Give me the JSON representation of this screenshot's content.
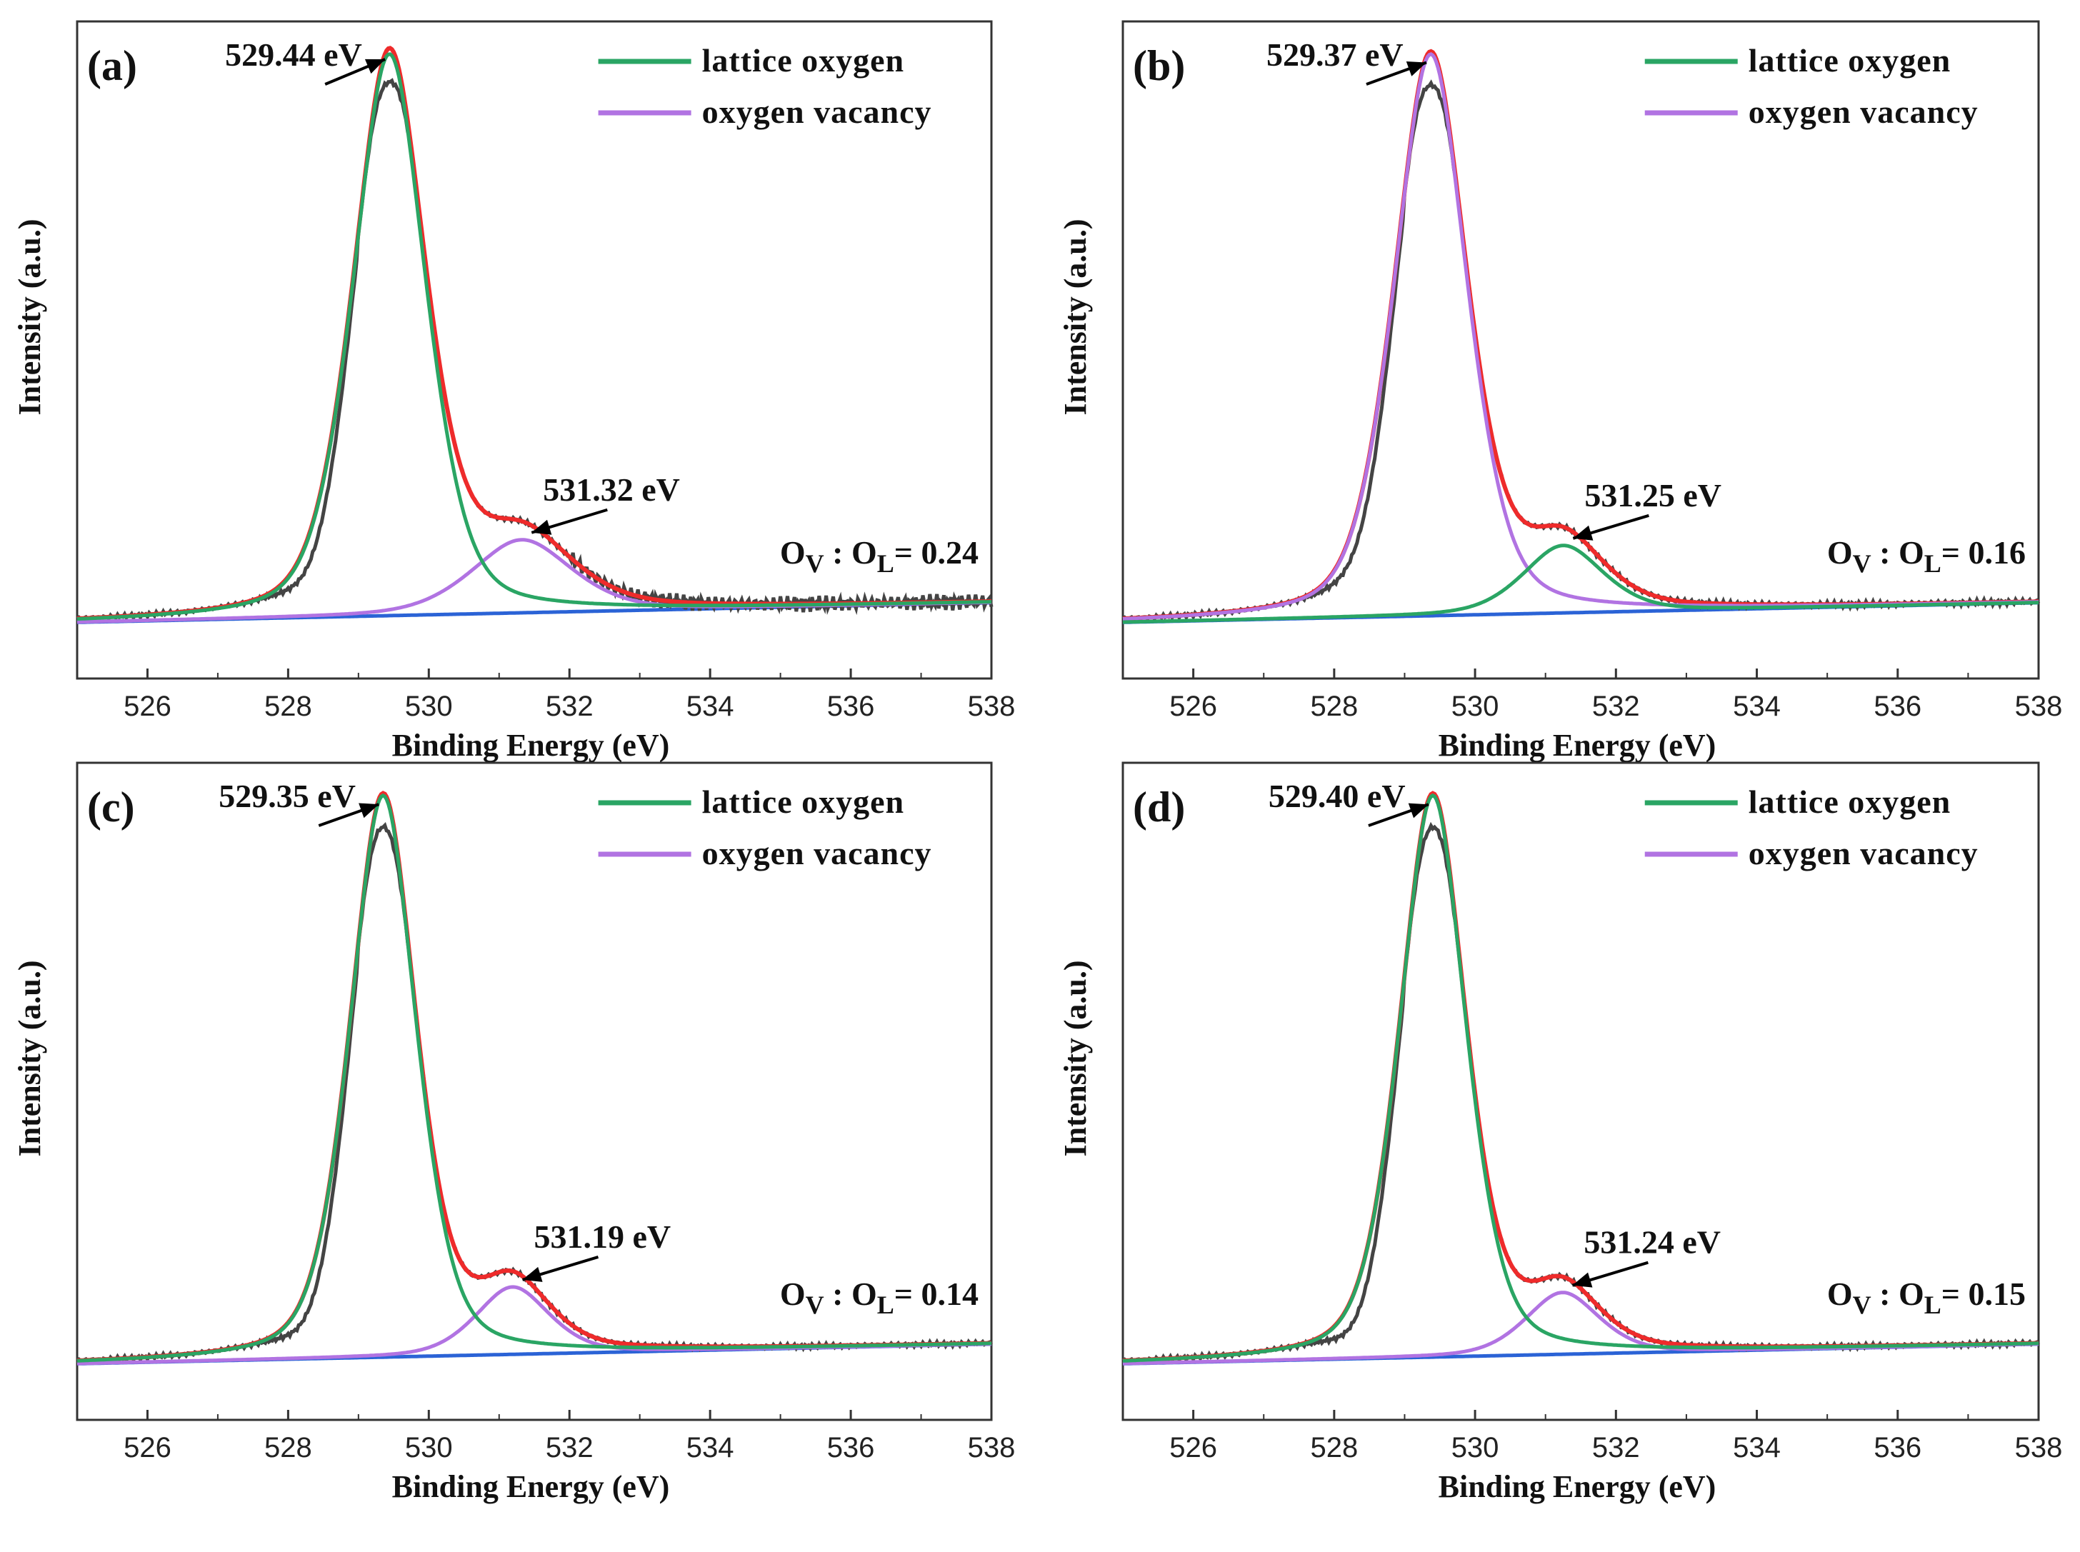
{
  "colors": {
    "raw": "#444444",
    "envelope": "#ee2b2b",
    "lattice": "#2aa564",
    "vacancy": "#b173e2",
    "background": "#2b63d6",
    "frame": "#333333"
  },
  "chart_data": [
    {
      "type": "line",
      "panel_label": "(a)",
      "xlabel": "Binding Energy (eV)",
      "ylabel": "Intensity (a.u.)",
      "xlim": [
        525,
        538
      ],
      "ylim": [
        -0.12,
        1.05
      ],
      "xticks": [
        "526",
        "528",
        "530",
        "532",
        "534",
        "536",
        "538"
      ],
      "legend": [
        "lattice oxygen",
        "oxygen vacancy"
      ],
      "ratio": {
        "prefix": "O",
        "sub1": "V",
        "mid": " : O",
        "sub2": "L",
        "suffix": "= 0.24"
      },
      "peaks": {
        "lattice": {
          "center": 529.44,
          "height": 1.0,
          "width": 0.55
        },
        "vacancy": {
          "center": 531.32,
          "height": 0.13,
          "width": 0.75
        }
      },
      "annotations": [
        {
          "text": "529.44 eV",
          "target": "lattice"
        },
        {
          "text": "531.32 eV",
          "target": "vacancy"
        }
      ],
      "green_component": "lattice",
      "purple_component": "vacancy",
      "noise_tail": 0.015
    },
    {
      "type": "line",
      "panel_label": "(b)",
      "xlabel": "Binding Energy (eV)",
      "ylabel": "Intensity (a.u.)",
      "xlim": [
        525,
        538
      ],
      "ylim": [
        -0.12,
        1.05
      ],
      "xticks": [
        "526",
        "528",
        "530",
        "532",
        "534",
        "536",
        "538"
      ],
      "legend": [
        "lattice oxygen",
        "oxygen vacancy"
      ],
      "ratio": {
        "prefix": "O",
        "sub1": "V",
        "mid": " : O",
        "sub2": "L",
        "suffix": "= 0.16"
      },
      "peaks": {
        "lattice": {
          "center": 529.37,
          "height": 1.0,
          "width": 0.55
        },
        "vacancy": {
          "center": 531.25,
          "height": 0.12,
          "width": 0.6
        }
      },
      "annotations": [
        {
          "text": "529.37 eV",
          "target": "lattice"
        },
        {
          "text": "531.25 eV",
          "target": "vacancy"
        }
      ],
      "green_component": "vacancy",
      "purple_component": "lattice",
      "noise_tail": 0.005
    },
    {
      "type": "line",
      "panel_label": "(c)",
      "xlabel": "Binding Energy (eV)",
      "ylabel": "Intensity (a.u.)",
      "xlim": [
        525,
        538
      ],
      "ylim": [
        -0.12,
        1.05
      ],
      "xticks": [
        "526",
        "528",
        "530",
        "532",
        "534",
        "536",
        "538"
      ],
      "legend": [
        "lattice oxygen",
        "oxygen vacancy"
      ],
      "ratio": {
        "prefix": "O",
        "sub1": "V",
        "mid": " : O",
        "sub2": "L",
        "suffix": "= 0.14"
      },
      "peaks": {
        "lattice": {
          "center": 529.35,
          "height": 1.0,
          "width": 0.5
        },
        "vacancy": {
          "center": 531.19,
          "height": 0.12,
          "width": 0.55
        }
      },
      "annotations": [
        {
          "text": "529.35 eV",
          "target": "lattice"
        },
        {
          "text": "531.19 eV",
          "target": "vacancy"
        }
      ],
      "green_component": "lattice",
      "purple_component": "vacancy",
      "noise_tail": 0.004
    },
    {
      "type": "line",
      "panel_label": "(d)",
      "xlabel": "Binding Energy (eV)",
      "ylabel": "Intensity (a.u.)",
      "xlim": [
        525,
        538
      ],
      "ylim": [
        -0.12,
        1.05
      ],
      "xticks": [
        "526",
        "528",
        "530",
        "532",
        "534",
        "536",
        "538"
      ],
      "legend": [
        "lattice oxygen",
        "oxygen vacancy"
      ],
      "ratio": {
        "prefix": "O",
        "sub1": "V",
        "mid": " : O",
        "sub2": "L",
        "suffix": "= 0.15"
      },
      "peaks": {
        "lattice": {
          "center": 529.4,
          "height": 1.0,
          "width": 0.5
        },
        "vacancy": {
          "center": 531.24,
          "height": 0.11,
          "width": 0.55
        }
      },
      "annotations": [
        {
          "text": "529.40 eV",
          "target": "lattice"
        },
        {
          "text": "531.24 eV",
          "target": "vacancy"
        }
      ],
      "green_component": "lattice",
      "purple_component": "vacancy",
      "noise_tail": 0.004
    }
  ]
}
